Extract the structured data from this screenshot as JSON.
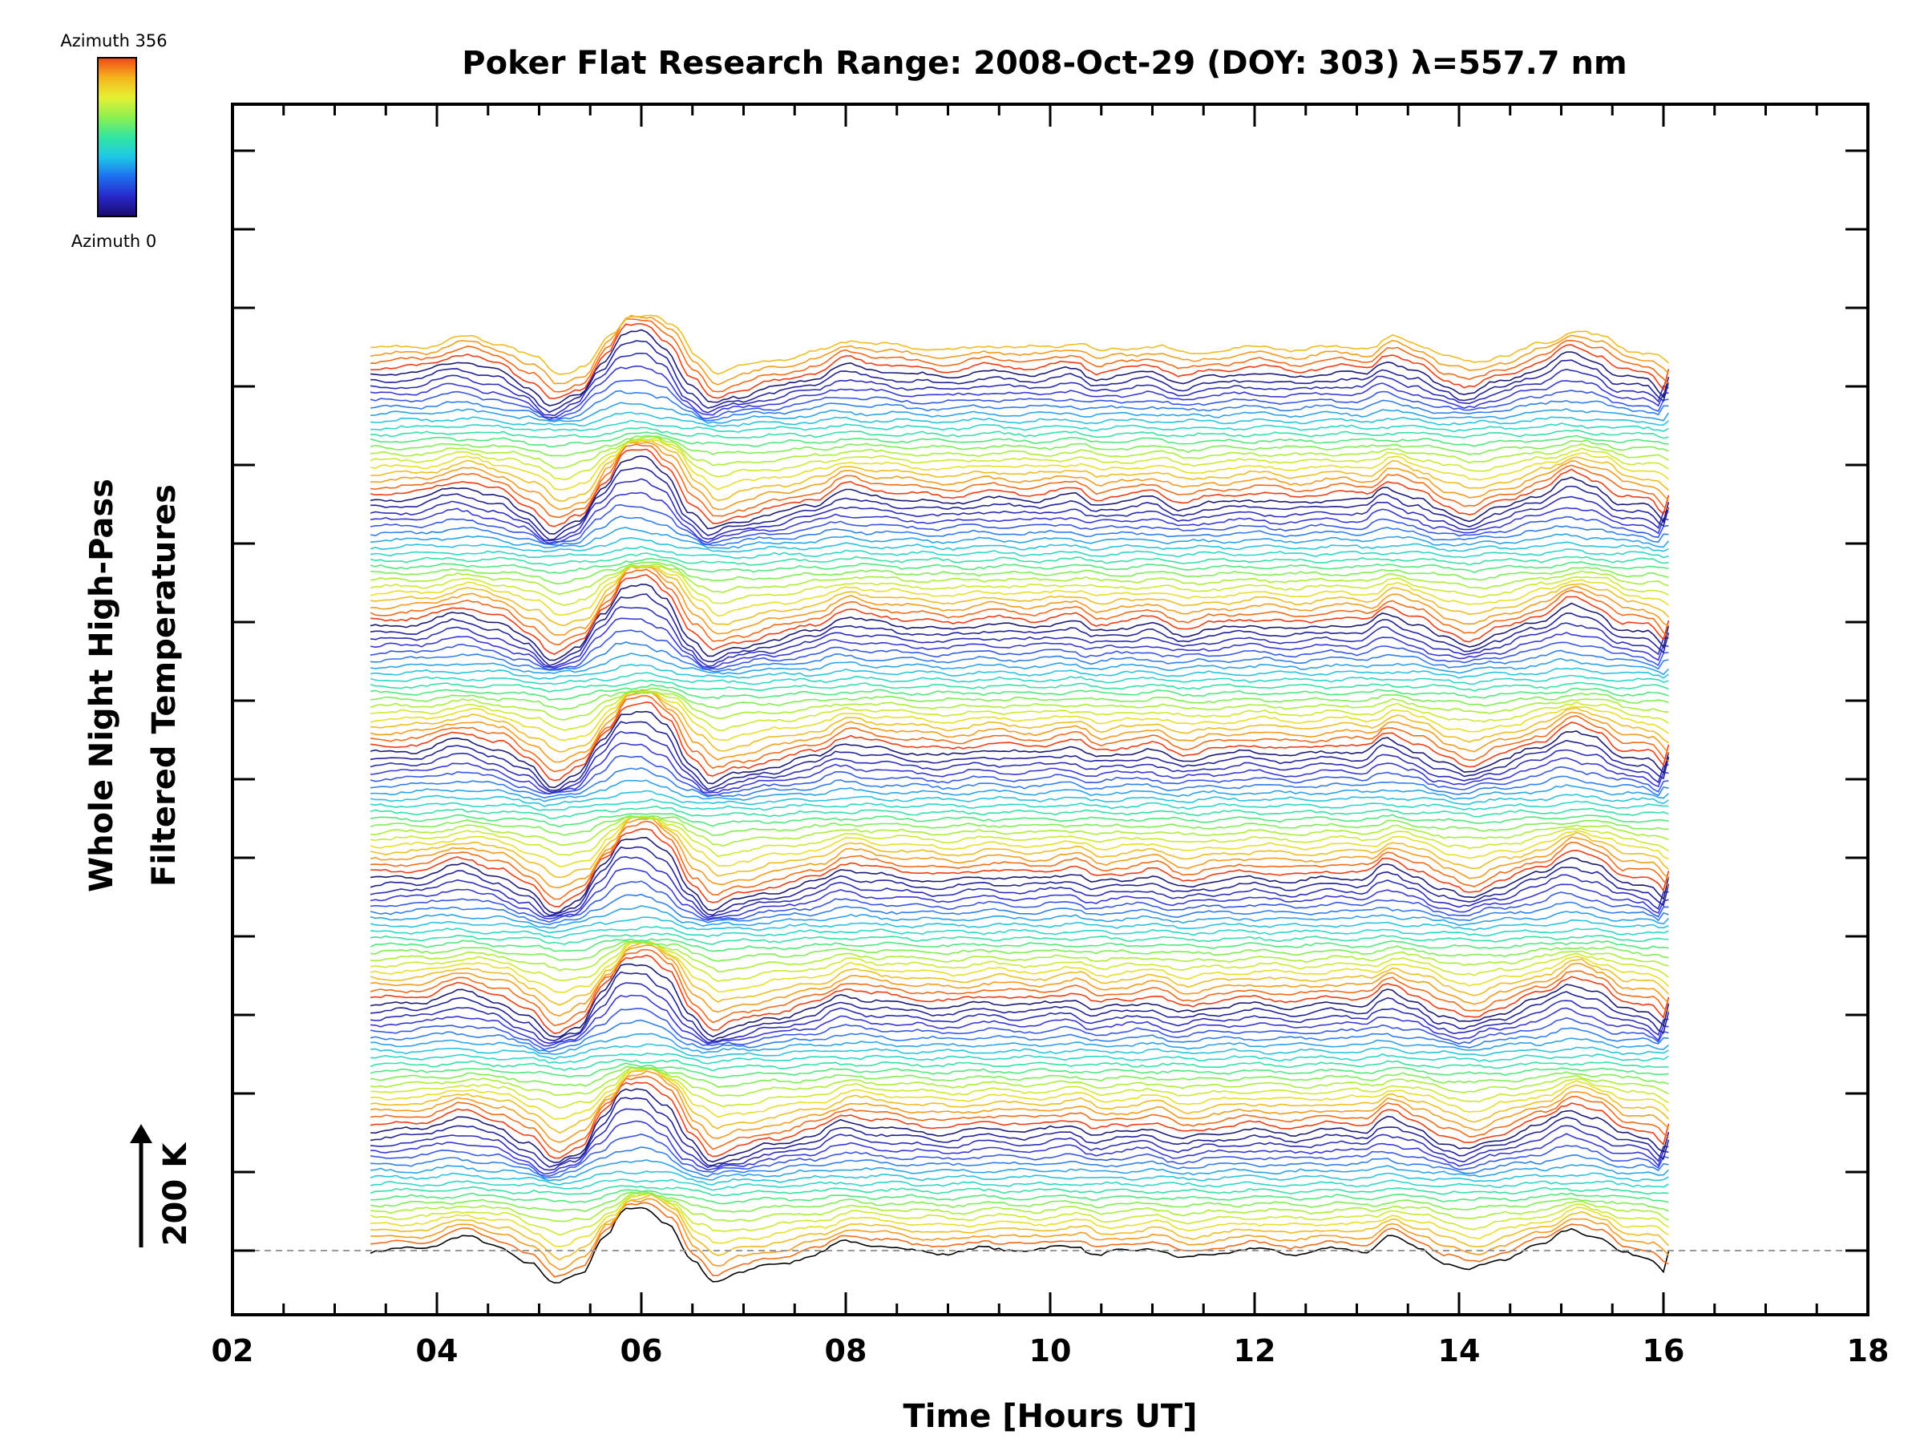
{
  "chart_data": {
    "type": "line",
    "title": "Poker Flat Research Range: 2008-Oct-29 (DOY: 303) λ=557.7 nm",
    "xlabel": "Time [Hours UT]",
    "ylabel_line1": "Whole Night High-Pass",
    "ylabel_line2": "Filtered Temperatures",
    "xlim": [
      2,
      18
    ],
    "x_ticks": [
      "02",
      "04",
      "06",
      "08",
      "10",
      "12",
      "14",
      "16",
      "18"
    ],
    "x_start": 3.35,
    "x_end": 16.05,
    "series_count": 137,
    "series_offset_K": 12,
    "scale_bar_label": "200 K",
    "colorbar": {
      "top_label": "Azimuth 356",
      "bottom_label": "Azimuth 0",
      "colors": [
        "#1a0a6e",
        "#2828c8",
        "#1e6ef0",
        "#1ec8e6",
        "#32e6a0",
        "#8cf050",
        "#e6f032",
        "#f5b41e",
        "#f04614"
      ]
    },
    "colors": {
      "azimuth_0": "#000000",
      "azimuth_low": "#1e1e8c",
      "azimuth_blue": "#3c3cdc",
      "azimuth_cyan": "#28c8dc",
      "azimuth_green": "#3ce68c",
      "azimuth_yellow": "#c8e628",
      "azimuth_orange": "#f0a01e",
      "azimuth_356": "#f03c14"
    },
    "profile": [
      [
        3.35,
        0
      ],
      [
        3.8,
        3
      ],
      [
        4.25,
        25
      ],
      [
        4.6,
        8
      ],
      [
        4.9,
        -22
      ],
      [
        5.15,
        -60
      ],
      [
        5.4,
        -40
      ],
      [
        5.65,
        25
      ],
      [
        5.85,
        75
      ],
      [
        6.05,
        78
      ],
      [
        6.25,
        50
      ],
      [
        6.5,
        -20
      ],
      [
        6.7,
        -55
      ],
      [
        6.95,
        -40
      ],
      [
        7.3,
        -25
      ],
      [
        7.7,
        -8
      ],
      [
        8.0,
        18
      ],
      [
        8.3,
        8
      ],
      [
        8.7,
        0
      ],
      [
        9.0,
        -5
      ],
      [
        9.4,
        5
      ],
      [
        9.8,
        0
      ],
      [
        10.25,
        10
      ],
      [
        10.45,
        -8
      ],
      [
        10.7,
        -2
      ],
      [
        11.0,
        5
      ],
      [
        11.3,
        -15
      ],
      [
        11.6,
        -5
      ],
      [
        12.0,
        2
      ],
      [
        12.4,
        -5
      ],
      [
        12.8,
        3
      ],
      [
        13.1,
        0
      ],
      [
        13.3,
        25
      ],
      [
        13.6,
        5
      ],
      [
        13.85,
        -20
      ],
      [
        14.1,
        -35
      ],
      [
        14.4,
        -15
      ],
      [
        14.8,
        10
      ],
      [
        15.1,
        40
      ],
      [
        15.35,
        25
      ],
      [
        15.6,
        -5
      ],
      [
        15.85,
        -10
      ],
      [
        16.05,
        -40
      ]
    ]
  }
}
